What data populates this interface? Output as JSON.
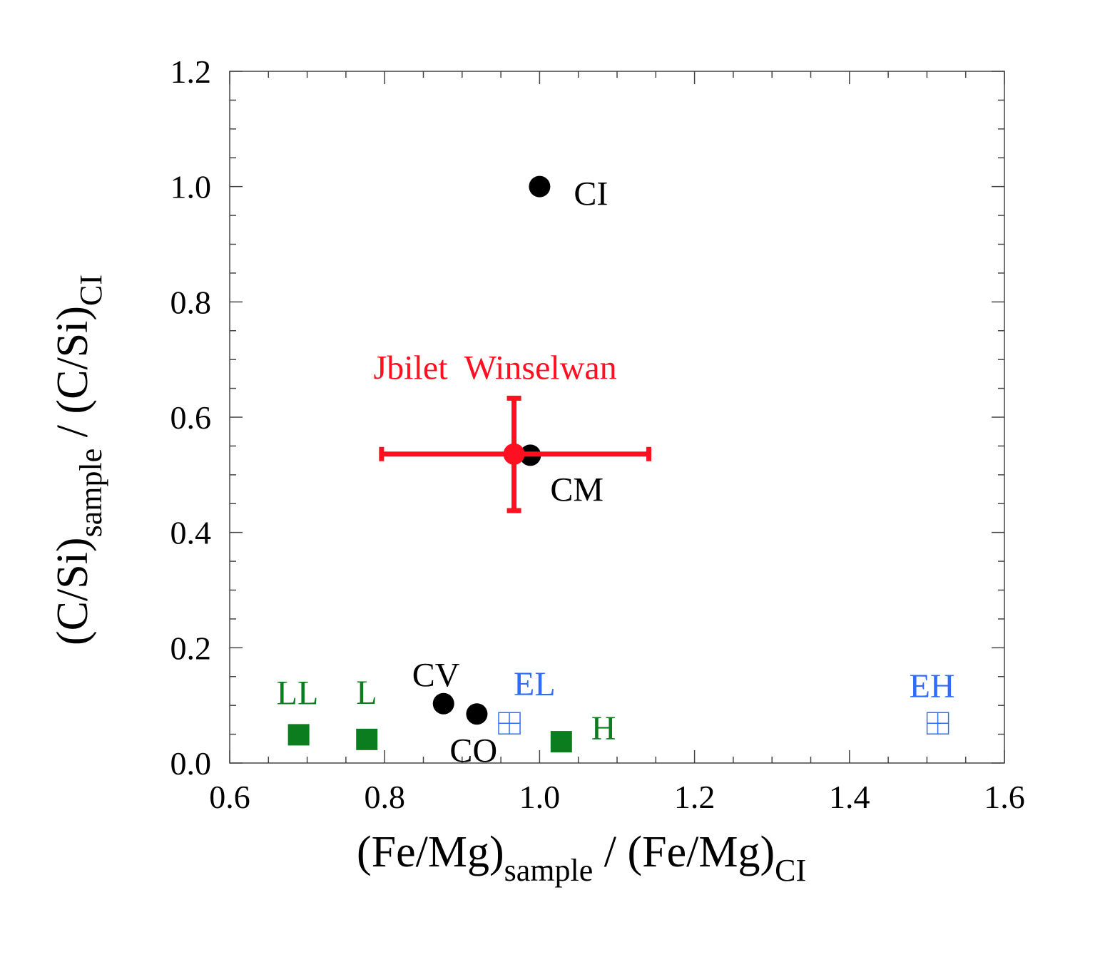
{
  "chart_data": {
    "type": "scatter",
    "xlabel": {
      "main": "(Fe/Mg)",
      "sub": "sample",
      "main2": " / (Fe/Mg)",
      "sub2": "CI"
    },
    "ylabel": {
      "main": "(C/Si)",
      "sub": "sample",
      "main2": " / (C/Si)",
      "sub2": "CI"
    },
    "xlim": [
      0.6,
      1.6
    ],
    "ylim": [
      0.0,
      1.2
    ],
    "xticks": [
      "0.6",
      "0.8",
      "1.0",
      "1.2",
      "1.4",
      "1.6"
    ],
    "yticks": [
      "0.0",
      "0.2",
      "0.4",
      "0.6",
      "0.8",
      "1.0",
      "1.2"
    ],
    "grid": false,
    "colors": {
      "carbonaceous": "#000000",
      "ordinary": "#0b7d1e",
      "enstatite": "#2f6bff",
      "sample": "#ff1020"
    },
    "points": [
      {
        "label": "CI",
        "x": 1.0,
        "y": 1.0,
        "marker": "circle",
        "group": "carbonaceous"
      },
      {
        "label": "CM",
        "x": 0.988,
        "y": 0.534,
        "marker": "circle",
        "group": "carbonaceous"
      },
      {
        "label": "CV",
        "x": 0.876,
        "y": 0.103,
        "marker": "circle",
        "group": "carbonaceous"
      },
      {
        "label": "CO",
        "x": 0.919,
        "y": 0.085,
        "marker": "circle",
        "group": "carbonaceous"
      },
      {
        "label": "LL",
        "x": 0.689,
        "y": 0.049,
        "marker": "square",
        "group": "ordinary"
      },
      {
        "label": "L",
        "x": 0.777,
        "y": 0.041,
        "marker": "square",
        "group": "ordinary"
      },
      {
        "label": "H",
        "x": 1.028,
        "y": 0.037,
        "marker": "square",
        "group": "ordinary"
      },
      {
        "label": "EL",
        "x": 0.961,
        "y": 0.069,
        "marker": "open-square-cross",
        "group": "enstatite"
      },
      {
        "label": "EH",
        "x": 1.514,
        "y": 0.069,
        "marker": "open-square-cross",
        "group": "enstatite"
      },
      {
        "label": "Jbilet  Winselwan",
        "x": 0.967,
        "y": 0.536,
        "marker": "circle",
        "group": "sample",
        "xerr": [
          0.796,
          1.141
        ],
        "yerr": [
          0.438,
          0.633
        ]
      }
    ]
  }
}
